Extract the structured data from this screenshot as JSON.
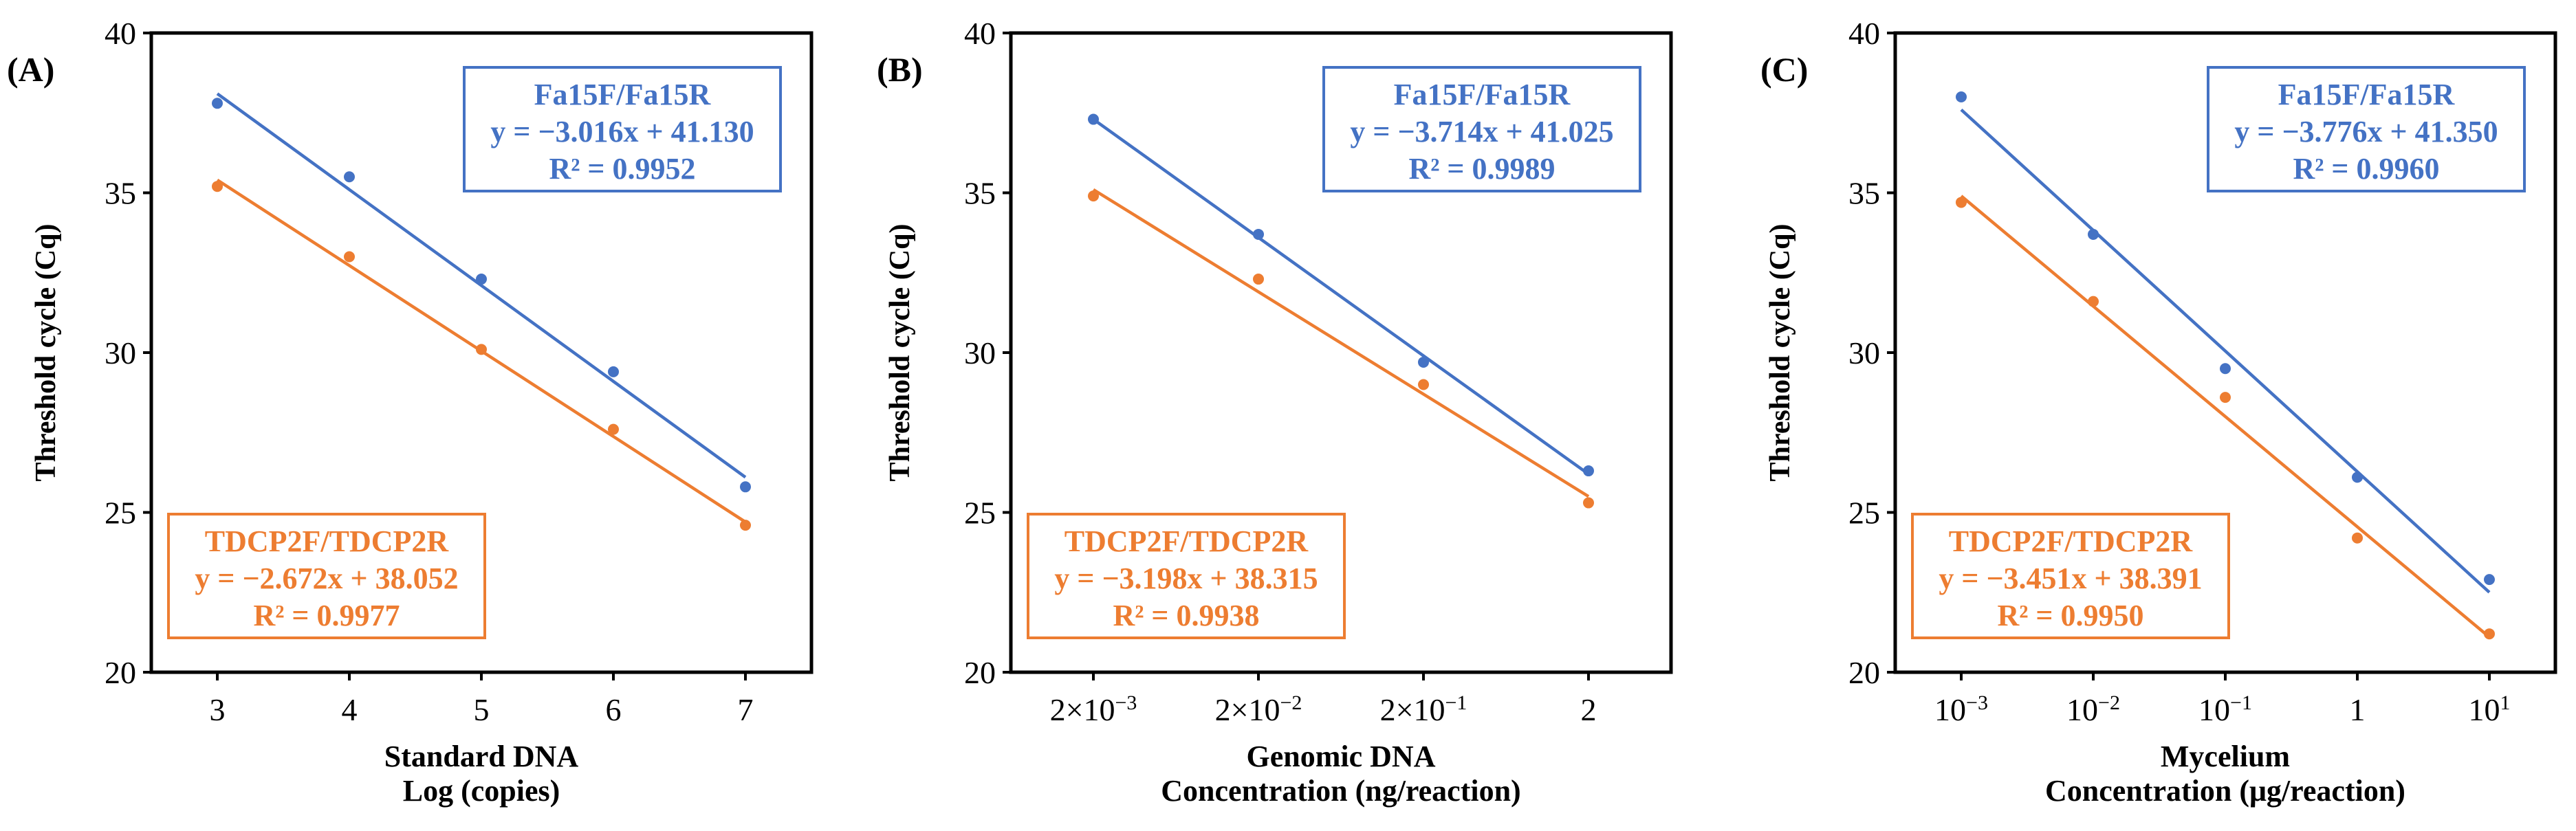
{
  "colors": {
    "blue": "#4472C4",
    "orange": "#ED7D31",
    "axis": "#000000"
  },
  "chart_data": [
    {
      "panel_label": "(A)",
      "type": "scatter",
      "ylabel": "Threshold cycle (Cq)",
      "xlabel_lines": [
        "Standard DNA",
        "Log (copies)"
      ],
      "ylim": [
        20,
        40
      ],
      "yticks": [
        20,
        25,
        30,
        35,
        40
      ],
      "xlim": [
        2.5,
        7.5
      ],
      "x": [
        3,
        4,
        5,
        6,
        7
      ],
      "xtick_labels": [
        {
          "base": "3",
          "exp": ""
        },
        {
          "base": "4",
          "exp": ""
        },
        {
          "base": "5",
          "exp": ""
        },
        {
          "base": "6",
          "exp": ""
        },
        {
          "base": "7",
          "exp": ""
        }
      ],
      "series": [
        {
          "name": "Fa15F/Fa15R",
          "color": "blue",
          "values": [
            37.8,
            35.5,
            32.3,
            29.4,
            25.8
          ],
          "equation": "y = −3.016x + 41.130",
          "r2": "R² = 0.9952",
          "line": [
            38.1,
            26.1
          ],
          "legend_position": "top-right"
        },
        {
          "name": "TDCP2F/TDCP2R",
          "color": "orange",
          "values": [
            35.2,
            33.0,
            30.1,
            27.6,
            24.6
          ],
          "equation": "y = −2.672x + 38.052",
          "r2": "R² = 0.9977",
          "line": [
            35.4,
            24.7
          ],
          "legend_position": "bottom-left"
        }
      ]
    },
    {
      "panel_label": "(B)",
      "type": "scatter",
      "ylabel": "Threshold cycle (Cq)",
      "xlabel_lines": [
        "Genomic DNA",
        "Concentration (ng/reaction)"
      ],
      "ylim": [
        20,
        40
      ],
      "yticks": [
        20,
        25,
        30,
        35,
        40
      ],
      "xlim": [
        -0.5,
        3.5
      ],
      "x": [
        0,
        1,
        2,
        3
      ],
      "xtick_labels": [
        {
          "base": "2×10",
          "exp": "−3"
        },
        {
          "base": "2×10",
          "exp": "−2"
        },
        {
          "base": "2×10",
          "exp": "−1"
        },
        {
          "base": "2",
          "exp": ""
        }
      ],
      "series": [
        {
          "name": "Fa15F/Fa15R",
          "color": "blue",
          "values": [
            37.3,
            33.7,
            29.7,
            26.3
          ],
          "equation": "y = −3.714x + 41.025",
          "r2": "R² = 0.9989",
          "line": [
            37.3,
            26.2
          ],
          "legend_position": "top-right"
        },
        {
          "name": "TDCP2F/TDCP2R",
          "color": "orange",
          "values": [
            34.9,
            32.3,
            29.0,
            25.3
          ],
          "equation": "y = −3.198x + 38.315",
          "r2": "R² = 0.9938",
          "line": [
            35.1,
            25.5
          ],
          "legend_position": "bottom-left"
        }
      ]
    },
    {
      "panel_label": "(C)",
      "type": "scatter",
      "ylabel": "Threshold cycle (Cq)",
      "xlabel_lines": [
        "Mycelium",
        "Concentration (μg/reaction)"
      ],
      "ylim": [
        20,
        40
      ],
      "yticks": [
        20,
        25,
        30,
        35,
        40
      ],
      "xlim": [
        -0.5,
        4.5
      ],
      "x": [
        0,
        1,
        2,
        3,
        4
      ],
      "xtick_labels": [
        {
          "base": "10",
          "exp": "−3"
        },
        {
          "base": "10",
          "exp": "−2"
        },
        {
          "base": "10",
          "exp": "−1"
        },
        {
          "base": "1",
          "exp": ""
        },
        {
          "base": "10",
          "exp": "1"
        }
      ],
      "series": [
        {
          "name": "Fa15F/Fa15R",
          "color": "blue",
          "values": [
            38.0,
            33.7,
            29.5,
            26.1,
            22.9
          ],
          "equation": "y = −3.776x + 41.350",
          "r2": "R² = 0.9960",
          "line": [
            37.6,
            22.5
          ],
          "legend_position": "top-right"
        },
        {
          "name": "TDCP2F/TDCP2R",
          "color": "orange",
          "values": [
            34.7,
            31.6,
            28.6,
            24.2,
            21.2
          ],
          "equation": "y = −3.451x + 38.391",
          "r2": "R² = 0.9950",
          "line": [
            34.9,
            21.1
          ],
          "legend_position": "bottom-left"
        }
      ]
    }
  ]
}
